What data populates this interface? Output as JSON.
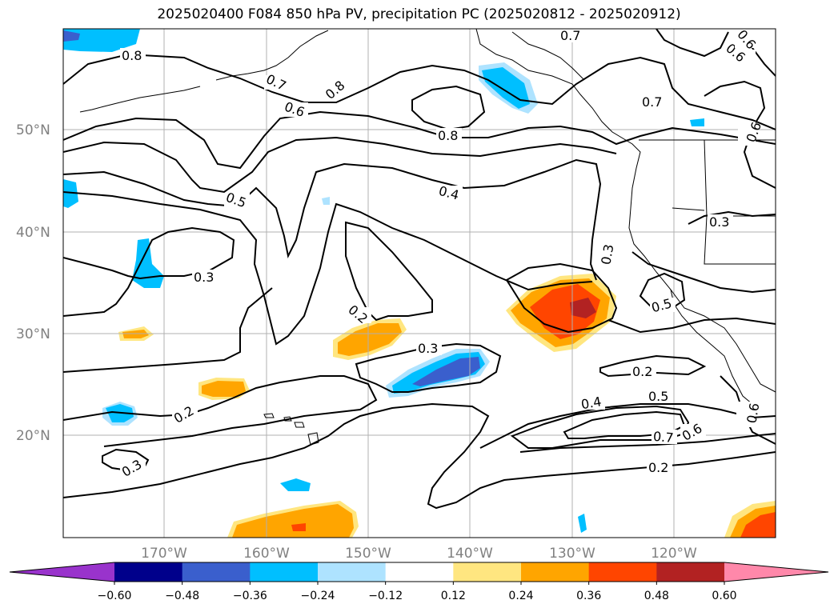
{
  "title": "2025020400 F084 850 hPa PV, precipitation PC (2025020812 - 2025020912)",
  "map": {
    "lat_ticks": [
      "50°N",
      "40°N",
      "30°N",
      "20°N"
    ],
    "lon_ticks": [
      "170°W",
      "160°W",
      "150°W",
      "140°W",
      "130°W",
      "120°W"
    ],
    "grid": true
  },
  "contour_labels": [
    "0.8",
    "0.7",
    "0.6",
    "0.8",
    "0.7",
    "0.6",
    "0.8",
    "0.7",
    "0.6",
    "0.5",
    "0.4",
    "0.3",
    "0.3",
    "0.3",
    "0.2",
    "0.3",
    "0.5",
    "0.2",
    "0.2",
    "0.4",
    "0.5",
    "0.7",
    "0.6",
    "0.6",
    "0.2",
    "0.3",
    "0.6"
  ],
  "colorbar": {
    "ticks": [
      "−0.60",
      "−0.48",
      "−0.36",
      "−0.24",
      "−0.12",
      "0.12",
      "0.24",
      "0.36",
      "0.48",
      "0.60"
    ],
    "colors": [
      "#9933cc",
      "#00008b",
      "#3a5fcd",
      "#00bfff",
      "#aee3ff",
      "#ffffff",
      "#ffe680",
      "#ffa500",
      "#ff4500",
      "#b22222",
      "#ff88aa"
    ]
  }
}
